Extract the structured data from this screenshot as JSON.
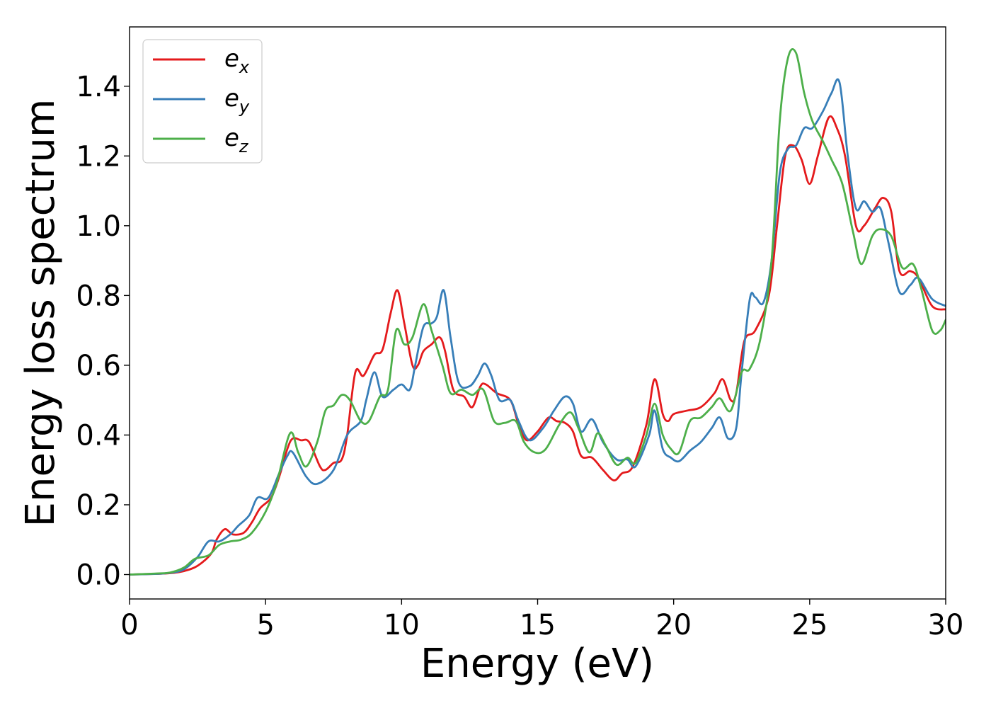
{
  "chart_data": {
    "type": "line",
    "title": "",
    "xlabel": "Energy (eV)",
    "ylabel": "Energy loss spectrum",
    "xlim": [
      0,
      30
    ],
    "ylim": [
      -0.07,
      1.57
    ],
    "xticks": [
      0,
      5,
      10,
      15,
      20,
      25,
      30
    ],
    "xtick_labels": [
      "0",
      "5",
      "10",
      "15",
      "20",
      "25",
      "30"
    ],
    "yticks": [
      0.0,
      0.2,
      0.4,
      0.6,
      0.8,
      1.0,
      1.2,
      1.4
    ],
    "ytick_labels": [
      "0.0",
      "0.2",
      "0.4",
      "0.6",
      "0.8",
      "1.0",
      "1.2",
      "1.4"
    ],
    "grid": false,
    "legend_position": "top-left",
    "series": [
      {
        "name": "e",
        "subscript": "x",
        "color": "#e41a1c",
        "points": [
          [
            0,
            0
          ],
          [
            1,
            0.002
          ],
          [
            1.5,
            0.004
          ],
          [
            2,
            0.01
          ],
          [
            2.5,
            0.025
          ],
          [
            3,
            0.06
          ],
          [
            3.2,
            0.1
          ],
          [
            3.5,
            0.13
          ],
          [
            3.8,
            0.115
          ],
          [
            4.2,
            0.12
          ],
          [
            4.5,
            0.15
          ],
          [
            4.8,
            0.19
          ],
          [
            5.2,
            0.22
          ],
          [
            5.5,
            0.28
          ],
          [
            5.8,
            0.36
          ],
          [
            6,
            0.39
          ],
          [
            6.3,
            0.385
          ],
          [
            6.6,
            0.38
          ],
          [
            7,
            0.31
          ],
          [
            7.2,
            0.3
          ],
          [
            7.5,
            0.32
          ],
          [
            7.8,
            0.33
          ],
          [
            8,
            0.4
          ],
          [
            8.3,
            0.58
          ],
          [
            8.6,
            0.57
          ],
          [
            9,
            0.63
          ],
          [
            9.3,
            0.645
          ],
          [
            9.6,
            0.75
          ],
          [
            9.85,
            0.815
          ],
          [
            10.1,
            0.72
          ],
          [
            10.4,
            0.6
          ],
          [
            10.6,
            0.6
          ],
          [
            10.8,
            0.64
          ],
          [
            11.1,
            0.66
          ],
          [
            11.4,
            0.68
          ],
          [
            11.6,
            0.64
          ],
          [
            11.9,
            0.53
          ],
          [
            12.3,
            0.51
          ],
          [
            12.6,
            0.48
          ],
          [
            12.9,
            0.54
          ],
          [
            13.1,
            0.545
          ],
          [
            13.5,
            0.52
          ],
          [
            14,
            0.5
          ],
          [
            14.3,
            0.43
          ],
          [
            14.6,
            0.385
          ],
          [
            15,
            0.41
          ],
          [
            15.4,
            0.45
          ],
          [
            15.7,
            0.44
          ],
          [
            16,
            0.435
          ],
          [
            16.3,
            0.41
          ],
          [
            16.6,
            0.34
          ],
          [
            17,
            0.335
          ],
          [
            17.4,
            0.3
          ],
          [
            17.8,
            0.27
          ],
          [
            18.1,
            0.29
          ],
          [
            18.5,
            0.31
          ],
          [
            19,
            0.43
          ],
          [
            19.3,
            0.56
          ],
          [
            19.6,
            0.46
          ],
          [
            19.8,
            0.44
          ],
          [
            20,
            0.46
          ],
          [
            20.5,
            0.47
          ],
          [
            21,
            0.48
          ],
          [
            21.5,
            0.52
          ],
          [
            21.8,
            0.56
          ],
          [
            22.1,
            0.5
          ],
          [
            22.3,
            0.52
          ],
          [
            22.6,
            0.67
          ],
          [
            23,
            0.7
          ],
          [
            23.5,
            0.8
          ],
          [
            23.8,
            1.0
          ],
          [
            24.1,
            1.2
          ],
          [
            24.4,
            1.23
          ],
          [
            24.7,
            1.19
          ],
          [
            25,
            1.12
          ],
          [
            25.3,
            1.2
          ],
          [
            25.7,
            1.31
          ],
          [
            26,
            1.28
          ],
          [
            26.3,
            1.2
          ],
          [
            26.7,
            1.0
          ],
          [
            27,
            1.0
          ],
          [
            27.4,
            1.05
          ],
          [
            27.7,
            1.08
          ],
          [
            28,
            1.04
          ],
          [
            28.3,
            0.87
          ],
          [
            28.7,
            0.87
          ],
          [
            29,
            0.85
          ],
          [
            29.5,
            0.77
          ],
          [
            30,
            0.76
          ]
        ]
      },
      {
        "name": "e",
        "subscript": "y",
        "color": "#377eb8",
        "points": [
          [
            0,
            0
          ],
          [
            1,
            0.002
          ],
          [
            1.5,
            0.005
          ],
          [
            2,
            0.015
          ],
          [
            2.5,
            0.05
          ],
          [
            2.9,
            0.095
          ],
          [
            3.3,
            0.095
          ],
          [
            3.7,
            0.115
          ],
          [
            4,
            0.14
          ],
          [
            4.4,
            0.17
          ],
          [
            4.7,
            0.22
          ],
          [
            5.1,
            0.22
          ],
          [
            5.5,
            0.29
          ],
          [
            5.8,
            0.34
          ],
          [
            6,
            0.35
          ],
          [
            6.5,
            0.28
          ],
          [
            6.9,
            0.26
          ],
          [
            7.5,
            0.3
          ],
          [
            8,
            0.4
          ],
          [
            8.5,
            0.44
          ],
          [
            8.7,
            0.5
          ],
          [
            9,
            0.58
          ],
          [
            9.3,
            0.51
          ],
          [
            9.7,
            0.53
          ],
          [
            10,
            0.545
          ],
          [
            10.3,
            0.53
          ],
          [
            10.5,
            0.6
          ],
          [
            10.8,
            0.71
          ],
          [
            11.1,
            0.72
          ],
          [
            11.3,
            0.74
          ],
          [
            11.55,
            0.815
          ],
          [
            11.8,
            0.68
          ],
          [
            12.1,
            0.55
          ],
          [
            12.5,
            0.54
          ],
          [
            12.8,
            0.57
          ],
          [
            13.05,
            0.605
          ],
          [
            13.3,
            0.57
          ],
          [
            13.6,
            0.5
          ],
          [
            14,
            0.5
          ],
          [
            14.3,
            0.44
          ],
          [
            14.7,
            0.385
          ],
          [
            15.2,
            0.42
          ],
          [
            15.6,
            0.47
          ],
          [
            16,
            0.51
          ],
          [
            16.3,
            0.49
          ],
          [
            16.6,
            0.41
          ],
          [
            17,
            0.445
          ],
          [
            17.4,
            0.38
          ],
          [
            17.9,
            0.33
          ],
          [
            18.3,
            0.33
          ],
          [
            18.6,
            0.31
          ],
          [
            19.1,
            0.4
          ],
          [
            19.3,
            0.47
          ],
          [
            19.6,
            0.36
          ],
          [
            19.9,
            0.335
          ],
          [
            20.2,
            0.325
          ],
          [
            20.6,
            0.355
          ],
          [
            21,
            0.38
          ],
          [
            21.4,
            0.42
          ],
          [
            21.7,
            0.45
          ],
          [
            22,
            0.39
          ],
          [
            22.3,
            0.42
          ],
          [
            22.5,
            0.58
          ],
          [
            22.8,
            0.79
          ],
          [
            23,
            0.795
          ],
          [
            23.3,
            0.78
          ],
          [
            23.6,
            0.9
          ],
          [
            23.9,
            1.15
          ],
          [
            24.2,
            1.22
          ],
          [
            24.5,
            1.23
          ],
          [
            24.8,
            1.28
          ],
          [
            25.1,
            1.28
          ],
          [
            25.5,
            1.33
          ],
          [
            25.8,
            1.38
          ],
          [
            26.1,
            1.41
          ],
          [
            26.4,
            1.2
          ],
          [
            26.7,
            1.05
          ],
          [
            27,
            1.07
          ],
          [
            27.3,
            1.04
          ],
          [
            27.6,
            1.05
          ],
          [
            27.9,
            0.95
          ],
          [
            28.3,
            0.81
          ],
          [
            28.7,
            0.83
          ],
          [
            29,
            0.85
          ],
          [
            29.5,
            0.79
          ],
          [
            30,
            0.77
          ]
        ]
      },
      {
        "name": "e",
        "subscript": "z",
        "color": "#4daf4a",
        "points": [
          [
            0,
            0
          ],
          [
            1,
            0.003
          ],
          [
            1.5,
            0.006
          ],
          [
            2,
            0.02
          ],
          [
            2.4,
            0.045
          ],
          [
            2.9,
            0.055
          ],
          [
            3.3,
            0.085
          ],
          [
            3.7,
            0.095
          ],
          [
            4.1,
            0.1
          ],
          [
            4.5,
            0.12
          ],
          [
            5,
            0.18
          ],
          [
            5.4,
            0.26
          ],
          [
            5.9,
            0.405
          ],
          [
            6.2,
            0.35
          ],
          [
            6.5,
            0.31
          ],
          [
            6.9,
            0.38
          ],
          [
            7.2,
            0.47
          ],
          [
            7.5,
            0.485
          ],
          [
            7.8,
            0.515
          ],
          [
            8.1,
            0.5
          ],
          [
            8.5,
            0.44
          ],
          [
            8.8,
            0.44
          ],
          [
            9.2,
            0.51
          ],
          [
            9.5,
            0.53
          ],
          [
            9.8,
            0.7
          ],
          [
            10.1,
            0.66
          ],
          [
            10.4,
            0.68
          ],
          [
            10.8,
            0.775
          ],
          [
            11.1,
            0.7
          ],
          [
            11.5,
            0.6
          ],
          [
            11.8,
            0.52
          ],
          [
            12.2,
            0.53
          ],
          [
            12.6,
            0.515
          ],
          [
            13,
            0.53
          ],
          [
            13.4,
            0.44
          ],
          [
            13.8,
            0.435
          ],
          [
            14.2,
            0.44
          ],
          [
            14.5,
            0.38
          ],
          [
            14.9,
            0.35
          ],
          [
            15.3,
            0.36
          ],
          [
            15.8,
            0.43
          ],
          [
            16.2,
            0.465
          ],
          [
            16.5,
            0.42
          ],
          [
            16.9,
            0.35
          ],
          [
            17.2,
            0.405
          ],
          [
            17.5,
            0.37
          ],
          [
            17.9,
            0.315
          ],
          [
            18.3,
            0.335
          ],
          [
            18.6,
            0.32
          ],
          [
            19,
            0.4
          ],
          [
            19.3,
            0.49
          ],
          [
            19.6,
            0.4
          ],
          [
            19.9,
            0.36
          ],
          [
            20.2,
            0.35
          ],
          [
            20.6,
            0.44
          ],
          [
            21,
            0.45
          ],
          [
            21.4,
            0.48
          ],
          [
            21.7,
            0.505
          ],
          [
            22.1,
            0.47
          ],
          [
            22.5,
            0.58
          ],
          [
            22.8,
            0.59
          ],
          [
            23.2,
            0.68
          ],
          [
            23.6,
            0.9
          ],
          [
            23.9,
            1.3
          ],
          [
            24.2,
            1.48
          ],
          [
            24.5,
            1.495
          ],
          [
            24.8,
            1.38
          ],
          [
            25.1,
            1.3
          ],
          [
            25.5,
            1.24
          ],
          [
            25.8,
            1.19
          ],
          [
            26.2,
            1.12
          ],
          [
            26.6,
            0.98
          ],
          [
            26.9,
            0.89
          ],
          [
            27.3,
            0.97
          ],
          [
            27.6,
            0.99
          ],
          [
            28,
            0.97
          ],
          [
            28.4,
            0.88
          ],
          [
            28.8,
            0.89
          ],
          [
            29.1,
            0.82
          ],
          [
            29.5,
            0.7
          ],
          [
            29.8,
            0.7
          ],
          [
            30,
            0.73
          ]
        ]
      }
    ]
  }
}
